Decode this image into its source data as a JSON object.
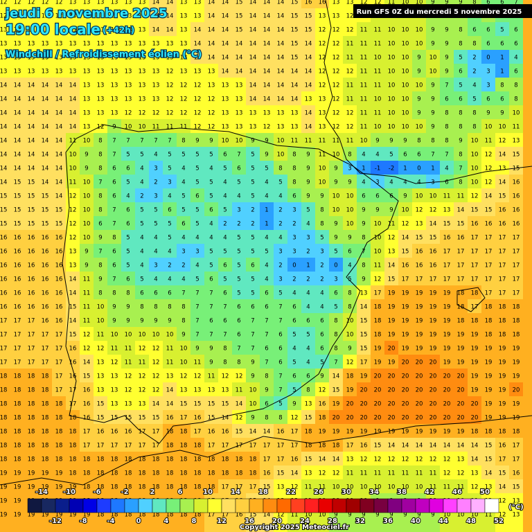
{
  "header": {
    "date": "jeudi 6 novembre 2025",
    "time": "19:00 locale",
    "lead": "(+42h)",
    "parameter": "Windchill / Refroidissement éolien (°C)",
    "run": "Run GFS 0Z du mercredi 5 novembre 2025"
  },
  "grid": {
    "rows": [
      [
        12,
        12,
        12,
        12,
        12,
        13,
        13,
        13,
        13,
        13,
        13,
        14,
        14,
        13,
        13,
        14,
        14,
        15,
        14,
        14,
        14,
        15,
        16,
        16,
        13,
        13,
        12,
        12,
        11,
        10,
        10,
        9,
        9,
        9,
        8,
        6,
        6,
        7
      ],
      [
        12,
        12,
        12,
        12,
        12,
        13,
        13,
        13,
        13,
        13,
        13,
        14,
        14,
        13,
        13,
        14,
        14,
        15,
        14,
        14,
        14,
        15,
        15,
        13,
        13,
        12,
        12,
        11,
        10,
        10,
        10,
        9,
        9,
        9,
        6,
        8,
        6,
        7
      ],
      [
        13,
        13,
        13,
        13,
        13,
        13,
        13,
        13,
        13,
        13,
        13,
        14,
        14,
        13,
        14,
        14,
        14,
        15,
        14,
        14,
        14,
        15,
        15,
        12,
        12,
        12,
        11,
        11,
        10,
        10,
        10,
        9,
        9,
        8,
        6,
        6,
        5,
        6
      ],
      [
        13,
        13,
        13,
        13,
        13,
        13,
        13,
        13,
        13,
        13,
        13,
        13,
        13,
        13,
        14,
        14,
        14,
        14,
        14,
        14,
        14,
        15,
        14,
        12,
        12,
        11,
        11,
        11,
        10,
        10,
        10,
        9,
        9,
        8,
        8,
        6,
        6,
        6
      ],
      [
        13,
        13,
        13,
        13,
        13,
        13,
        13,
        13,
        13,
        13,
        13,
        13,
        13,
        13,
        14,
        14,
        14,
        14,
        14,
        14,
        14,
        15,
        14,
        12,
        12,
        11,
        11,
        10,
        10,
        10,
        9,
        10,
        9,
        5,
        2,
        0,
        1,
        4
      ],
      [
        13,
        13,
        13,
        13,
        13,
        13,
        13,
        13,
        13,
        13,
        13,
        13,
        12,
        13,
        13,
        13,
        14,
        14,
        14,
        14,
        14,
        14,
        14,
        12,
        12,
        12,
        11,
        11,
        10,
        10,
        9,
        10,
        9,
        6,
        2,
        3,
        1,
        6
      ],
      [
        14,
        14,
        14,
        14,
        14,
        14,
        13,
        13,
        13,
        13,
        13,
        13,
        12,
        12,
        12,
        13,
        13,
        13,
        14,
        14,
        14,
        14,
        14,
        12,
        12,
        11,
        11,
        11,
        10,
        10,
        10,
        9,
        7,
        5,
        4,
        3,
        8,
        8
      ],
      [
        14,
        14,
        14,
        14,
        14,
        14,
        13,
        13,
        13,
        13,
        13,
        13,
        12,
        12,
        12,
        12,
        13,
        13,
        14,
        14,
        14,
        14,
        13,
        13,
        12,
        11,
        11,
        10,
        10,
        10,
        9,
        9,
        6,
        6,
        5,
        6,
        6,
        8
      ],
      [
        14,
        14,
        14,
        14,
        14,
        14,
        13,
        13,
        13,
        12,
        12,
        12,
        12,
        12,
        12,
        12,
        13,
        13,
        13,
        13,
        13,
        13,
        14,
        13,
        12,
        12,
        11,
        11,
        10,
        10,
        9,
        9,
        8,
        8,
        8,
        9,
        9,
        10
      ],
      [
        14,
        14,
        14,
        14,
        14,
        14,
        13,
        12,
        9,
        10,
        10,
        11,
        11,
        11,
        12,
        12,
        13,
        13,
        13,
        12,
        13,
        13,
        14,
        13,
        12,
        12,
        11,
        10,
        10,
        10,
        10,
        9,
        8,
        8,
        8,
        10,
        10,
        11
      ],
      [
        14,
        14,
        14,
        14,
        14,
        11,
        10,
        8,
        7,
        7,
        7,
        7,
        7,
        8,
        9,
        9,
        10,
        10,
        9,
        9,
        10,
        11,
        11,
        11,
        11,
        11,
        10,
        9,
        9,
        9,
        8,
        8,
        8,
        9,
        10,
        11,
        12,
        13
      ],
      [
        14,
        14,
        14,
        14,
        14,
        10,
        9,
        8,
        7,
        5,
        5,
        4,
        5,
        5,
        5,
        5,
        6,
        7,
        5,
        9,
        10,
        8,
        9,
        11,
        10,
        8,
        4,
        4,
        5,
        6,
        6,
        7,
        7,
        8,
        10,
        12,
        14,
        15
      ],
      [
        14,
        14,
        14,
        14,
        14,
        10,
        9,
        8,
        6,
        6,
        4,
        3,
        5,
        4,
        5,
        4,
        5,
        6,
        5,
        5,
        8,
        8,
        9,
        10,
        9,
        3,
        1,
        -1,
        -2,
        1,
        0,
        1,
        4,
        7,
        10,
        12,
        13,
        15
      ],
      [
        14,
        15,
        15,
        14,
        14,
        11,
        10,
        7,
        6,
        5,
        4,
        2,
        3,
        4,
        5,
        5,
        4,
        5,
        5,
        4,
        5,
        8,
        9,
        10,
        9,
        9,
        4,
        3,
        4,
        4,
        4,
        3,
        6,
        8,
        10,
        12,
        14,
        16
      ],
      [
        15,
        15,
        15,
        15,
        14,
        12,
        10,
        8,
        6,
        4,
        2,
        3,
        4,
        5,
        6,
        5,
        4,
        4,
        5,
        4,
        4,
        6,
        9,
        9,
        10,
        10,
        6,
        6,
        6,
        9,
        10,
        10,
        11,
        11,
        12,
        14,
        15,
        16
      ],
      [
        15,
        15,
        15,
        15,
        15,
        12,
        10,
        8,
        7,
        6,
        5,
        5,
        6,
        5,
        5,
        6,
        5,
        3,
        2,
        1,
        2,
        3,
        5,
        8,
        10,
        10,
        9,
        9,
        9,
        10,
        12,
        12,
        13,
        14,
        15,
        15,
        16,
        16
      ],
      [
        15,
        15,
        15,
        15,
        15,
        12,
        10,
        6,
        7,
        6,
        5,
        5,
        5,
        6,
        5,
        4,
        2,
        2,
        2,
        1,
        2,
        2,
        4,
        8,
        9,
        10,
        9,
        10,
        11,
        12,
        13,
        14,
        15,
        15,
        16,
        16,
        16,
        16
      ],
      [
        16,
        16,
        16,
        16,
        16,
        12,
        10,
        9,
        8,
        5,
        4,
        4,
        5,
        4,
        4,
        4,
        4,
        5,
        5,
        4,
        4,
        3,
        3,
        5,
        9,
        9,
        8,
        10,
        12,
        14,
        15,
        15,
        16,
        16,
        17,
        17,
        17,
        17
      ],
      [
        16,
        16,
        16,
        16,
        16,
        13,
        9,
        7,
        6,
        5,
        4,
        4,
        4,
        3,
        3,
        5,
        5,
        5,
        5,
        5,
        3,
        3,
        2,
        3,
        5,
        6,
        7,
        10,
        13,
        15,
        16,
        16,
        17,
        17,
        17,
        17,
        17,
        17
      ],
      [
        16,
        16,
        16,
        16,
        16,
        13,
        9,
        8,
        6,
        5,
        4,
        3,
        2,
        2,
        4,
        5,
        6,
        5,
        6,
        4,
        2,
        0,
        1,
        2,
        0,
        4,
        8,
        11,
        14,
        16,
        16,
        16,
        17,
        17,
        17,
        17,
        17,
        17
      ],
      [
        16,
        16,
        16,
        16,
        16,
        14,
        11,
        9,
        7,
        6,
        5,
        4,
        4,
        4,
        5,
        6,
        5,
        5,
        5,
        4,
        3,
        2,
        2,
        2,
        3,
        5,
        9,
        12,
        15,
        17,
        17,
        17,
        17,
        17,
        17,
        17,
        17,
        17
      ],
      [
        16,
        16,
        16,
        16,
        16,
        14,
        11,
        8,
        8,
        8,
        6,
        6,
        6,
        7,
        7,
        7,
        6,
        5,
        5,
        6,
        5,
        4,
        4,
        4,
        6,
        8,
        13,
        17,
        19,
        19,
        19,
        19,
        19,
        18,
        18,
        17,
        17,
        17
      ],
      [
        16,
        16,
        16,
        16,
        16,
        15,
        11,
        10,
        9,
        9,
        8,
        8,
        8,
        8,
        7,
        7,
        7,
        6,
        6,
        6,
        7,
        6,
        4,
        4,
        5,
        8,
        14,
        18,
        19,
        19,
        19,
        19,
        19,
        18,
        17,
        18,
        18,
        18
      ],
      [
        17,
        17,
        17,
        16,
        16,
        14,
        11,
        10,
        9,
        9,
        9,
        9,
        9,
        8,
        7,
        6,
        6,
        6,
        7,
        7,
        7,
        6,
        6,
        6,
        8,
        10,
        15,
        18,
        19,
        19,
        19,
        19,
        19,
        18,
        18,
        18,
        18,
        18
      ],
      [
        17,
        17,
        17,
        17,
        17,
        15,
        12,
        11,
        10,
        10,
        10,
        10,
        10,
        9,
        7,
        7,
        7,
        6,
        7,
        7,
        6,
        5,
        5,
        6,
        8,
        10,
        15,
        18,
        19,
        19,
        19,
        19,
        19,
        19,
        19,
        18,
        18,
        18
      ],
      [
        17,
        17,
        17,
        17,
        17,
        16,
        12,
        12,
        11,
        11,
        12,
        12,
        11,
        10,
        9,
        9,
        8,
        7,
        7,
        6,
        6,
        4,
        4,
        6,
        8,
        9,
        15,
        19,
        20,
        19,
        19,
        19,
        19,
        19,
        19,
        19,
        19,
        19
      ],
      [
        17,
        17,
        17,
        17,
        17,
        16,
        14,
        13,
        12,
        11,
        11,
        12,
        11,
        10,
        11,
        9,
        8,
        8,
        9,
        7,
        6,
        5,
        4,
        5,
        7,
        12,
        17,
        19,
        19,
        20,
        20,
        20,
        19,
        19,
        19,
        19,
        19,
        19
      ],
      [
        18,
        18,
        18,
        18,
        17,
        16,
        15,
        13,
        13,
        12,
        12,
        12,
        13,
        12,
        12,
        11,
        12,
        12,
        9,
        8,
        7,
        6,
        6,
        9,
        14,
        18,
        19,
        20,
        20,
        20,
        20,
        20,
        20,
        20,
        19,
        19,
        19,
        19
      ],
      [
        18,
        18,
        18,
        18,
        17,
        17,
        16,
        13,
        13,
        12,
        12,
        12,
        14,
        13,
        13,
        13,
        13,
        11,
        10,
        9,
        7,
        5,
        8,
        12,
        15,
        19,
        20,
        20,
        20,
        20,
        20,
        20,
        20,
        20,
        19,
        19,
        19,
        20
      ],
      [
        18,
        18,
        18,
        18,
        18,
        17,
        16,
        15,
        13,
        13,
        13,
        14,
        14,
        15,
        15,
        15,
        15,
        14,
        10,
        6,
        5,
        9,
        13,
        16,
        19,
        20,
        20,
        20,
        20,
        20,
        20,
        20,
        20,
        20,
        20,
        19,
        19,
        19
      ],
      [
        18,
        18,
        18,
        18,
        18,
        18,
        16,
        15,
        15,
        15,
        15,
        15,
        16,
        17,
        16,
        15,
        14,
        12,
        9,
        8,
        8,
        12,
        15,
        18,
        20,
        20,
        20,
        20,
        20,
        20,
        20,
        20,
        20,
        20,
        20,
        19,
        19,
        19
      ],
      [
        18,
        18,
        18,
        18,
        18,
        18,
        17,
        16,
        16,
        16,
        17,
        17,
        18,
        18,
        17,
        16,
        16,
        15,
        14,
        14,
        16,
        17,
        18,
        19,
        19,
        19,
        19,
        19,
        19,
        19,
        19,
        19,
        19,
        19,
        18,
        18,
        18,
        18
      ],
      [
        18,
        18,
        18,
        18,
        18,
        18,
        17,
        17,
        17,
        17,
        17,
        17,
        18,
        18,
        18,
        17,
        17,
        17,
        17,
        17,
        17,
        17,
        18,
        18,
        18,
        17,
        16,
        15,
        14,
        14,
        14,
        14,
        14,
        14,
        14,
        15,
        16,
        17
      ],
      [
        18,
        18,
        18,
        18,
        18,
        18,
        18,
        18,
        18,
        18,
        18,
        18,
        18,
        18,
        18,
        18,
        18,
        18,
        18,
        17,
        17,
        16,
        15,
        14,
        14,
        13,
        12,
        12,
        12,
        12,
        12,
        12,
        12,
        13,
        14,
        15,
        17,
        17
      ],
      [
        19,
        19,
        19,
        19,
        19,
        18,
        18,
        18,
        18,
        18,
        18,
        18,
        18,
        18,
        18,
        18,
        18,
        18,
        18,
        16,
        15,
        14,
        13,
        12,
        12,
        11,
        11,
        11,
        11,
        11,
        11,
        11,
        12,
        12,
        13,
        14,
        15,
        16
      ],
      [
        19,
        19,
        19,
        19,
        19,
        19,
        18,
        18,
        18,
        18,
        18,
        18,
        18,
        18,
        18,
        18,
        17,
        17,
        17,
        15,
        13,
        12,
        11,
        11,
        10,
        10,
        10,
        10,
        10,
        10,
        10,
        11,
        11,
        11,
        12,
        13,
        14,
        15
      ],
      [
        19,
        19,
        19,
        19,
        19,
        19,
        18,
        18,
        18,
        18,
        18,
        18,
        18,
        18,
        18,
        17,
        17,
        16,
        15,
        14,
        13,
        12,
        11,
        10,
        10,
        10,
        10,
        9,
        9,
        9,
        9,
        10,
        10,
        10,
        11,
        12,
        12,
        13
      ],
      [
        19,
        19,
        19,
        19,
        19,
        19,
        19,
        18,
        18,
        18,
        18,
        18,
        18,
        18,
        18,
        17,
        17,
        16,
        15,
        14,
        12,
        11,
        10,
        10,
        9,
        9,
        9,
        9,
        9,
        9,
        9,
        9,
        10,
        10,
        10,
        11,
        12,
        13
      ]
    ]
  },
  "legend": {
    "values": [
      -14,
      -12,
      -10,
      -8,
      -6,
      -4,
      -2,
      0,
      2,
      4,
      6,
      8,
      10,
      12,
      14,
      16,
      18,
      20,
      22,
      24,
      26,
      28,
      30,
      32,
      34,
      36,
      38,
      40,
      42,
      44,
      46,
      48,
      50,
      52
    ],
    "colors": [
      "#101840",
      "#182860",
      "#0a1e8c",
      "#0000b4",
      "#0000e6",
      "#1e3cff",
      "#1e78ff",
      "#2aa0ff",
      "#50d0ff",
      "#60e8c0",
      "#78f078",
      "#a8f050",
      "#d8f030",
      "#ffff30",
      "#ffe060",
      "#ffd040",
      "#ffb020",
      "#ff8c10",
      "#ff6a00",
      "#ff4020",
      "#ff2020",
      "#e80000",
      "#c00000",
      "#a00000",
      "#800020",
      "#780040",
      "#800080",
      "#a000a0",
      "#c000c0",
      "#e000e0",
      "#ff40ff",
      "#ff80ff",
      "#ffb0ff",
      "#ffffff"
    ],
    "unit": "(°C)"
  },
  "footer": {
    "copyright": "Copyright 2025 Meteociel.fr"
  }
}
